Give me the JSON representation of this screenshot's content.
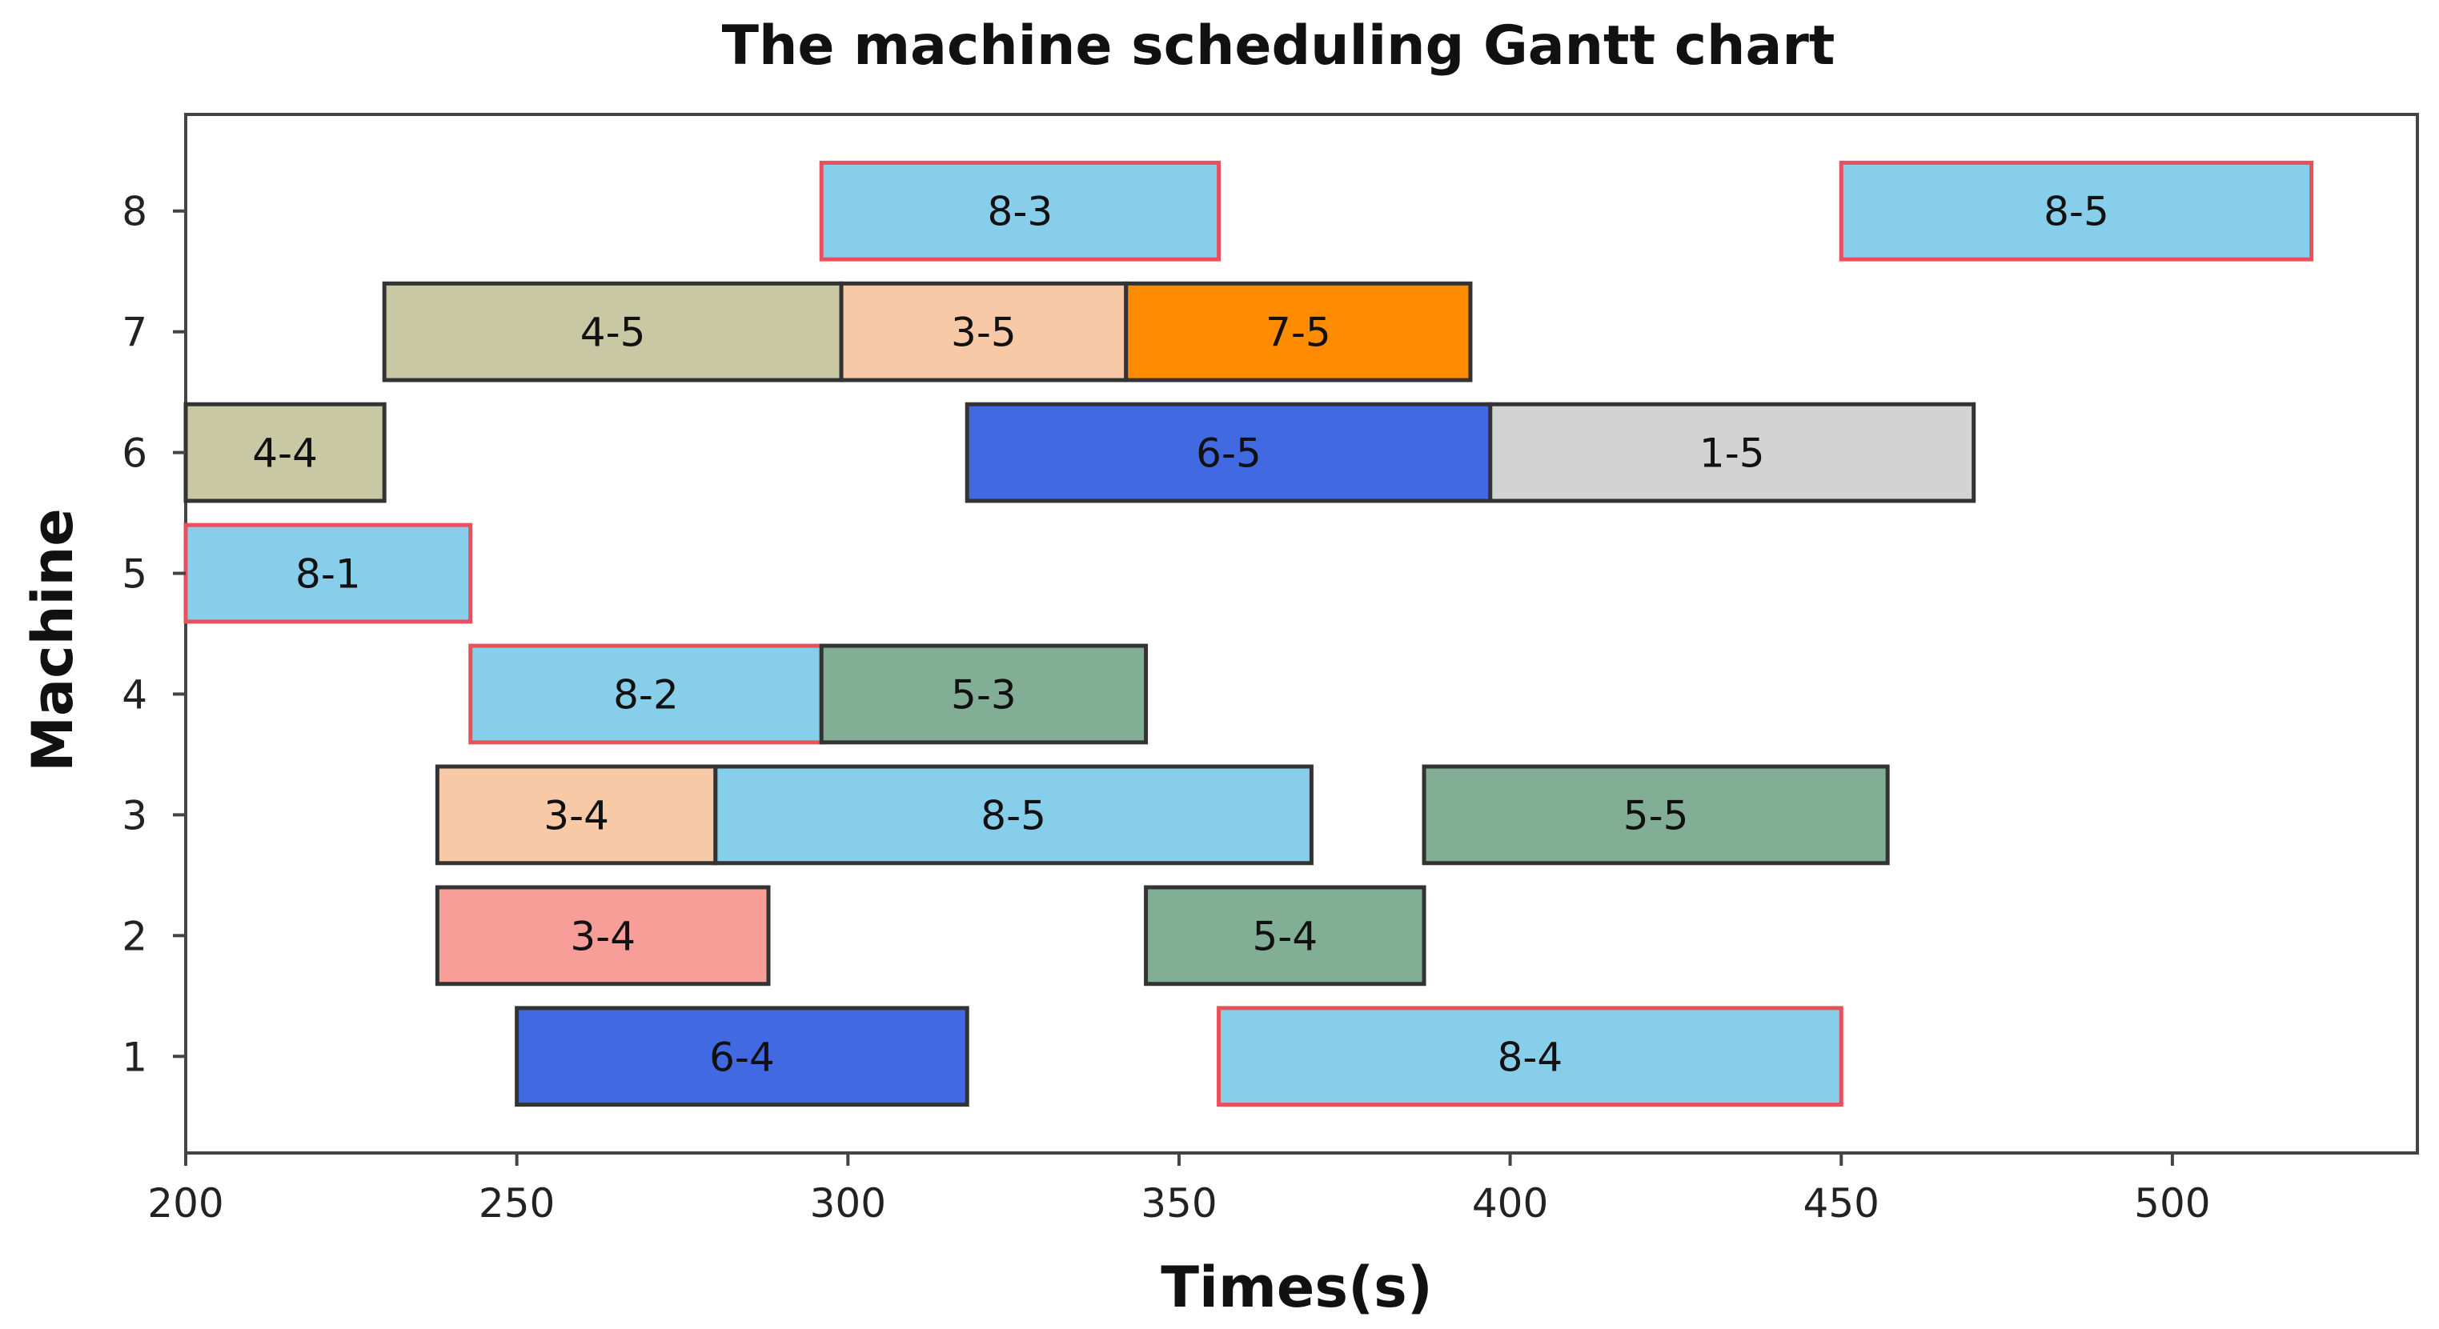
{
  "chart_data": {
    "type": "gantt",
    "title": "The machine scheduling Gantt chart",
    "xlabel": "Times(s)",
    "ylabel": "Machine",
    "xlim": [
      200,
      537
    ],
    "ylim": [
      0.2,
      8.8
    ],
    "x_ticks": [
      200,
      250,
      300,
      350,
      400,
      450,
      500
    ],
    "y_ticks": [
      1,
      2,
      3,
      4,
      5,
      6,
      7,
      8
    ],
    "grid": false,
    "tasks": [
      {
        "machine": 8,
        "label": "8-3",
        "start": 296,
        "end": 356,
        "fill": "#87CEEB",
        "edge": "#E8505B"
      },
      {
        "machine": 8,
        "label": "8-5",
        "start": 450,
        "end": 521,
        "fill": "#87CEEB",
        "edge": "#E8505B"
      },
      {
        "machine": 7,
        "label": "4-5",
        "start": 230,
        "end": 299,
        "fill": "#C8C8A4",
        "edge": "#333333"
      },
      {
        "machine": 7,
        "label": "3-5",
        "start": 299,
        "end": 342,
        "fill": "#F8C9A6",
        "edge": "#333333"
      },
      {
        "machine": 7,
        "label": "7-5",
        "start": 342,
        "end": 394,
        "fill": "#FF8C00",
        "edge": "#333333"
      },
      {
        "machine": 6,
        "label": "4-4",
        "start": 200,
        "end": 230,
        "fill": "#C8C8A4",
        "edge": "#333333"
      },
      {
        "machine": 6,
        "label": "6-5",
        "start": 318,
        "end": 397,
        "fill": "#4169E1",
        "edge": "#333333"
      },
      {
        "machine": 6,
        "label": "1-5",
        "start": 397,
        "end": 470,
        "fill": "#D3D3D3",
        "edge": "#333333"
      },
      {
        "machine": 5,
        "label": "8-1",
        "start": 200,
        "end": 243,
        "fill": "#87CEEB",
        "edge": "#E8505B"
      },
      {
        "machine": 4,
        "label": "8-2",
        "start": 243,
        "end": 296,
        "fill": "#87CEEB",
        "edge": "#E8505B"
      },
      {
        "machine": 4,
        "label": "5-3",
        "start": 296,
        "end": 345,
        "fill": "#82AE96",
        "edge": "#333333"
      },
      {
        "machine": 3,
        "label": "3-4",
        "start": 238,
        "end": 280,
        "fill": "#F8C9A6",
        "edge": "#333333"
      },
      {
        "machine": 3,
        "label": "8-5",
        "start": 280,
        "end": 370,
        "fill": "#87CEEB",
        "edge": "#333333"
      },
      {
        "machine": 3,
        "label": "5-5",
        "start": 387,
        "end": 457,
        "fill": "#82AE96",
        "edge": "#333333"
      },
      {
        "machine": 2,
        "label": "3-4",
        "start": 238,
        "end": 288,
        "fill": "#F89E99",
        "edge": "#333333"
      },
      {
        "machine": 2,
        "label": "5-4",
        "start": 345,
        "end": 387,
        "fill": "#82AE96",
        "edge": "#333333"
      },
      {
        "machine": 1,
        "label": "6-4",
        "start": 250,
        "end": 318,
        "fill": "#4169E1",
        "edge": "#333333"
      },
      {
        "machine": 1,
        "label": "8-4",
        "start": 356,
        "end": 450,
        "fill": "#87CEEB",
        "edge": "#E8505B"
      }
    ]
  }
}
